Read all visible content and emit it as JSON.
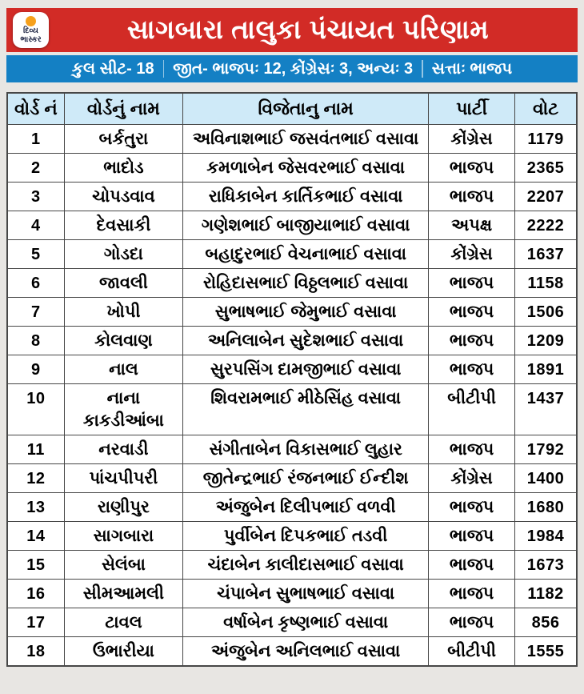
{
  "logo": {
    "line1": "દિવ્ય",
    "line2": "ભાસ્કર"
  },
  "header": {
    "title": "સાગબારા તાલુકા પંચાયત પરિણામ"
  },
  "stats_bar": {
    "segments": [
      "કુલ સીટ- 18",
      "જીત- ભાજપઃ 12, કોંગ્રેસઃ 3, અન્યઃ 3",
      "સત્તાઃ ભાજપ"
    ]
  },
  "chart_data": {
    "type": "table",
    "title": "સાગબારા તાલુકા પંચાયત પરિણામ",
    "subtitle": "કુલ સીટ- 18 | જીત- ભાજપઃ 12, કોંગ્રેસઃ 3, અન્યઃ 3 | સત્તાઃ ભાજપ",
    "columns": [
      "વોર્ડ નં",
      "વોર્ડનું નામ",
      "વિજેતાનુ નામ",
      "પાર્ટી",
      "વોટ"
    ],
    "rows": [
      {
        "no": "1",
        "ward": "બર્કતુરા",
        "winner": "અવિનાશભાઈ જસવંતભાઈ વસાવા",
        "party": "કોંગ્રેસ",
        "votes": "1179"
      },
      {
        "no": "2",
        "ward": "ભાદોડ",
        "winner": "કમળાબેન જેસવરભાઈ વસાવા",
        "party": "ભાજપ",
        "votes": "2365"
      },
      {
        "no": "3",
        "ward": "ચોપડવાવ",
        "winner": "રાધિકાબેન કાર્તિકભાઈ વસાવા",
        "party": "ભાજપ",
        "votes": "2207"
      },
      {
        "no": "4",
        "ward": "દેવસાકી",
        "winner": "ગણેશભાઈ બાજીયાભાઈ વસાવા",
        "party": "અપક્ષ",
        "votes": "2222"
      },
      {
        "no": "5",
        "ward": "ગોડદા",
        "winner": "બહાદુરભાઈ વેચનાભાઈ વસાવા",
        "party": "કોંગ્રેસ",
        "votes": "1637"
      },
      {
        "no": "6",
        "ward": "જાવલી",
        "winner": "રોહિદાસભાઈ વિઠ્ઠલભાઈ વસાવા",
        "party": "ભાજપ",
        "votes": "1158"
      },
      {
        "no": "7",
        "ward": "ખોપી",
        "winner": "સુભાષભાઈ જેમુભાઈ વસાવા",
        "party": "ભાજપ",
        "votes": "1506"
      },
      {
        "no": "8",
        "ward": "કોલવાણ",
        "winner": "અનિલાબેન સુદેશભાઈ વસાવા",
        "party": "ભાજપ",
        "votes": "1209"
      },
      {
        "no": "9",
        "ward": "નાલ",
        "winner": "સુરપસિંગ દામજીભાઈ વસાવા",
        "party": "ભાજપ",
        "votes": "1891"
      },
      {
        "no": "10",
        "ward": "નાના કાકડીઆંબા",
        "winner": "શિવરામભાઈ મીઠેસિંહ વસાવા",
        "party": "બીટીપી",
        "votes": "1437"
      },
      {
        "no": "11",
        "ward": "નરવાડી",
        "winner": "સંગીતાબેન વિકાસભાઈ લુહાર",
        "party": "ભાજપ",
        "votes": "1792"
      },
      {
        "no": "12",
        "ward": "પાંચપીપરી",
        "winner": "જીતેન્દ્રભાઈ રંજનભાઈ ઈન્દીશ",
        "party": "કોંગ્રેસ",
        "votes": "1400"
      },
      {
        "no": "13",
        "ward": "રાણીપુર",
        "winner": "અંજુબેન દિલીપભાઈ વળવી",
        "party": "ભાજપ",
        "votes": "1680"
      },
      {
        "no": "14",
        "ward": "સાગબારા",
        "winner": "પુર્વીબેન દિપકભાઈ તડવી",
        "party": "ભાજપ",
        "votes": "1984"
      },
      {
        "no": "15",
        "ward": "સેલંબા",
        "winner": "ચંદાબેન કાલીદાસભાઈ વસાવા",
        "party": "ભાજપ",
        "votes": "1673"
      },
      {
        "no": "16",
        "ward": "સીમઆમલી",
        "winner": "ચંપાબેન સુભાષભાઈ વસાવા",
        "party": "ભાજપ",
        "votes": "1182"
      },
      {
        "no": "17",
        "ward": "ટાવલ",
        "winner": "વર્ષાબેન કૃષ્ણભાઈ વસાવા",
        "party": "ભાજપ",
        "votes": "856"
      },
      {
        "no": "18",
        "ward": "ઉભારીયા",
        "winner": "અંજુબેન અનિલભાઈ વસાવા",
        "party": "બીટીપી",
        "votes": "1555"
      }
    ]
  },
  "colors": {
    "banner_red": "#d22b26",
    "bar_blue": "#1480c4",
    "table_header_blue": "#cfeaf8",
    "page_bg": "#e8e6e3",
    "border": "#474747",
    "logo_orange": "#f6a01b",
    "logo_text_navy": "#141c3c"
  }
}
